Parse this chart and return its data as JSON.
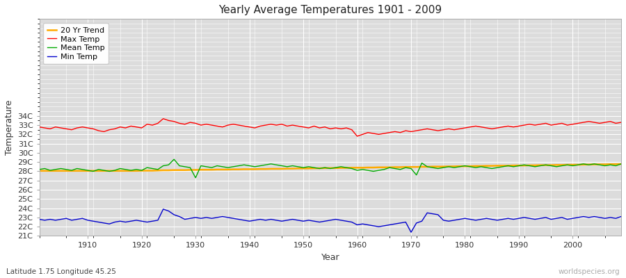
{
  "title": "Yearly Average Temperatures 1901 - 2009",
  "xlabel": "Year",
  "ylabel": "Temperature",
  "subtitle": "Latitude 1.75 Longitude 45.25",
  "watermark": "worldspecies.org",
  "years": [
    1901,
    1902,
    1903,
    1904,
    1905,
    1906,
    1907,
    1908,
    1909,
    1910,
    1911,
    1912,
    1913,
    1914,
    1915,
    1916,
    1917,
    1918,
    1919,
    1920,
    1921,
    1922,
    1923,
    1924,
    1925,
    1926,
    1927,
    1928,
    1929,
    1930,
    1931,
    1932,
    1933,
    1934,
    1935,
    1936,
    1937,
    1938,
    1939,
    1940,
    1941,
    1942,
    1943,
    1944,
    1945,
    1946,
    1947,
    1948,
    1949,
    1950,
    1951,
    1952,
    1953,
    1954,
    1955,
    1956,
    1957,
    1958,
    1959,
    1960,
    1961,
    1962,
    1963,
    1964,
    1965,
    1966,
    1967,
    1968,
    1969,
    1970,
    1971,
    1972,
    1973,
    1974,
    1975,
    1976,
    1977,
    1978,
    1979,
    1980,
    1981,
    1982,
    1983,
    1984,
    1985,
    1986,
    1987,
    1988,
    1989,
    1990,
    1991,
    1992,
    1993,
    1994,
    1995,
    1996,
    1997,
    1998,
    1999,
    2000,
    2001,
    2002,
    2003,
    2004,
    2005,
    2006,
    2007,
    2008,
    2009
  ],
  "max_temp": [
    32.8,
    32.7,
    32.6,
    32.8,
    32.7,
    32.6,
    32.5,
    32.7,
    32.8,
    32.7,
    32.6,
    32.4,
    32.3,
    32.5,
    32.6,
    32.8,
    32.7,
    32.9,
    32.8,
    32.7,
    33.1,
    33.0,
    33.2,
    33.7,
    33.5,
    33.4,
    33.2,
    33.1,
    33.3,
    33.2,
    33.0,
    33.1,
    33.0,
    32.9,
    32.8,
    33.0,
    33.1,
    33.0,
    32.9,
    32.8,
    32.7,
    32.9,
    33.0,
    33.1,
    33.0,
    33.1,
    32.9,
    33.0,
    32.9,
    32.8,
    32.7,
    32.9,
    32.7,
    32.8,
    32.6,
    32.7,
    32.6,
    32.7,
    32.5,
    31.8,
    32.0,
    32.2,
    32.1,
    32.0,
    32.1,
    32.2,
    32.3,
    32.2,
    32.4,
    32.3,
    32.4,
    32.5,
    32.6,
    32.5,
    32.4,
    32.5,
    32.6,
    32.5,
    32.6,
    32.7,
    32.8,
    32.9,
    32.8,
    32.7,
    32.6,
    32.7,
    32.8,
    32.9,
    32.8,
    32.9,
    33.0,
    33.1,
    33.0,
    33.1,
    33.2,
    33.0,
    33.1,
    33.2,
    33.0,
    33.1,
    33.2,
    33.3,
    33.4,
    33.3,
    33.2,
    33.3,
    33.4,
    33.2,
    33.3
  ],
  "mean_temp": [
    28.2,
    28.3,
    28.1,
    28.2,
    28.3,
    28.2,
    28.1,
    28.3,
    28.2,
    28.1,
    28.0,
    28.2,
    28.1,
    28.0,
    28.1,
    28.3,
    28.2,
    28.1,
    28.2,
    28.1,
    28.4,
    28.3,
    28.2,
    28.6,
    28.7,
    29.3,
    28.6,
    28.5,
    28.4,
    27.3,
    28.6,
    28.5,
    28.4,
    28.6,
    28.5,
    28.4,
    28.5,
    28.6,
    28.7,
    28.6,
    28.5,
    28.6,
    28.7,
    28.8,
    28.7,
    28.6,
    28.5,
    28.6,
    28.5,
    28.4,
    28.5,
    28.4,
    28.3,
    28.4,
    28.3,
    28.4,
    28.5,
    28.4,
    28.3,
    28.1,
    28.2,
    28.1,
    28.0,
    28.1,
    28.2,
    28.4,
    28.3,
    28.2,
    28.4,
    28.3,
    27.6,
    28.9,
    28.5,
    28.4,
    28.3,
    28.4,
    28.5,
    28.4,
    28.5,
    28.6,
    28.5,
    28.4,
    28.5,
    28.4,
    28.3,
    28.4,
    28.5,
    28.6,
    28.5,
    28.6,
    28.7,
    28.6,
    28.5,
    28.6,
    28.7,
    28.6,
    28.5,
    28.6,
    28.7,
    28.6,
    28.7,
    28.8,
    28.7,
    28.8,
    28.7,
    28.6,
    28.7,
    28.6,
    28.8
  ],
  "min_temp": [
    22.8,
    22.7,
    22.8,
    22.7,
    22.8,
    22.9,
    22.7,
    22.8,
    22.9,
    22.7,
    22.6,
    22.5,
    22.4,
    22.3,
    22.5,
    22.6,
    22.5,
    22.6,
    22.7,
    22.6,
    22.5,
    22.6,
    22.7,
    23.9,
    23.7,
    23.3,
    23.1,
    22.8,
    22.9,
    23.0,
    22.9,
    23.0,
    22.9,
    23.0,
    23.1,
    23.0,
    22.9,
    22.8,
    22.7,
    22.6,
    22.7,
    22.8,
    22.7,
    22.8,
    22.7,
    22.6,
    22.7,
    22.8,
    22.7,
    22.6,
    22.7,
    22.6,
    22.5,
    22.6,
    22.7,
    22.8,
    22.7,
    22.6,
    22.5,
    22.2,
    22.3,
    22.2,
    22.1,
    22.0,
    22.1,
    22.2,
    22.3,
    22.4,
    22.5,
    21.4,
    22.4,
    22.6,
    23.5,
    23.4,
    23.3,
    22.7,
    22.6,
    22.7,
    22.8,
    22.9,
    22.8,
    22.7,
    22.8,
    22.9,
    22.8,
    22.7,
    22.8,
    22.9,
    22.8,
    22.9,
    23.0,
    22.9,
    22.8,
    22.9,
    23.0,
    22.8,
    22.9,
    23.0,
    22.8,
    22.9,
    23.0,
    23.1,
    23.0,
    23.1,
    23.0,
    22.9,
    23.0,
    22.9,
    23.1
  ],
  "trend_20yr": [
    28.05,
    28.05,
    28.05,
    28.05,
    28.05,
    28.05,
    28.05,
    28.05,
    28.05,
    28.05,
    28.05,
    28.05,
    28.05,
    28.05,
    28.05,
    28.05,
    28.05,
    28.05,
    28.05,
    28.07,
    28.07,
    28.07,
    28.09,
    28.11,
    28.11,
    28.13,
    28.13,
    28.13,
    28.15,
    28.15,
    28.17,
    28.17,
    28.17,
    28.19,
    28.19,
    28.19,
    28.21,
    28.21,
    28.23,
    28.23,
    28.23,
    28.25,
    28.25,
    28.27,
    28.27,
    28.27,
    28.29,
    28.29,
    28.31,
    28.31,
    28.31,
    28.33,
    28.33,
    28.35,
    28.35,
    28.35,
    28.37,
    28.37,
    28.39,
    28.39,
    28.39,
    28.41,
    28.41,
    28.43,
    28.43,
    28.43,
    28.45,
    28.45,
    28.47,
    28.47,
    28.47,
    28.49,
    28.49,
    28.51,
    28.51,
    28.51,
    28.53,
    28.53,
    28.55,
    28.55,
    28.55,
    28.57,
    28.57,
    28.59,
    28.59,
    28.61,
    28.61,
    28.61,
    28.63,
    28.63,
    28.63,
    28.65,
    28.65,
    28.67,
    28.67,
    28.67,
    28.69,
    28.69,
    28.71,
    28.71,
    28.71,
    28.73,
    28.73,
    28.75,
    28.75,
    28.75,
    28.77,
    28.77,
    28.79
  ],
  "max_color": "#ff0000",
  "mean_color": "#00aa00",
  "min_color": "#0000cc",
  "trend_color": "#ffaa00",
  "plot_bg_color": "#dcdcdc",
  "fig_bg_color": "#ffffff",
  "grid_color": "#ffffff",
  "ylim_min": 21,
  "ylim_max": 34,
  "yticks": [
    21,
    22,
    23,
    24,
    25,
    26,
    27,
    28,
    29,
    30,
    31,
    32,
    33,
    34
  ],
  "ytick_labels": [
    "21C",
    "22C",
    "23C",
    "24C",
    "25C",
    "26C",
    "27C",
    "28C",
    "29C",
    "30C",
    "31C",
    "32C",
    "33C",
    "34C"
  ],
  "xticks": [
    1910,
    1920,
    1930,
    1940,
    1950,
    1960,
    1970,
    1980,
    1990,
    2000
  ],
  "legend_labels": [
    "Max Temp",
    "Mean Temp",
    "Min Temp",
    "20 Yr Trend"
  ]
}
